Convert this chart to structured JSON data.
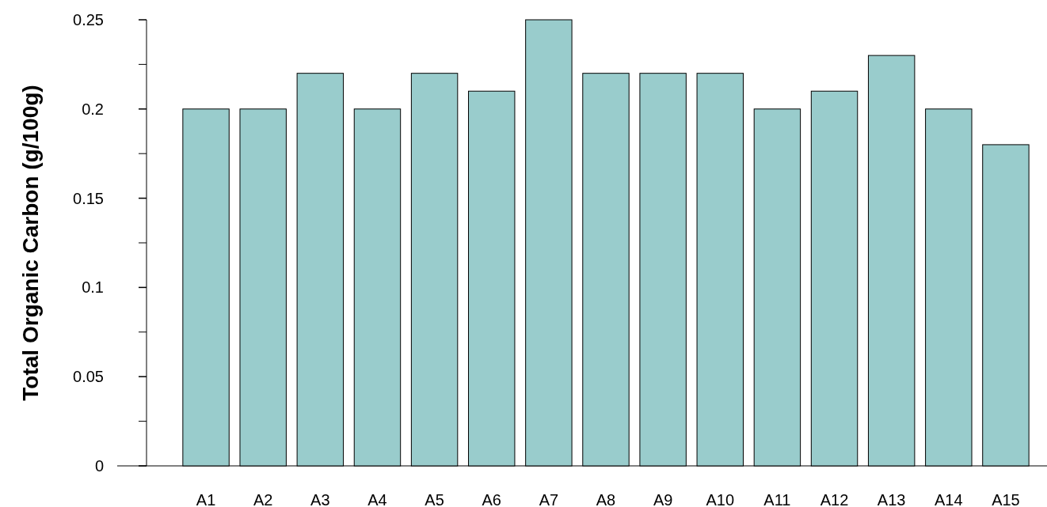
{
  "chart_data": {
    "type": "bar",
    "ylabel": "Total Organic Carbon (g/100g)",
    "categories": [
      "A1",
      "A2",
      "A3",
      "A4",
      "A5",
      "A6",
      "A7",
      "A8",
      "A9",
      "A10",
      "A11",
      "A12",
      "A13",
      "A14",
      "A15"
    ],
    "values": [
      0.2,
      0.2,
      0.22,
      0.2,
      0.22,
      0.21,
      0.25,
      0.22,
      0.22,
      0.22,
      0.2,
      0.21,
      0.23,
      0.2,
      0.18
    ],
    "color": "#99cccc",
    "ylim": [
      0,
      0.25
    ],
    "yticks": [
      0,
      0.05,
      0.1,
      0.15,
      0.2,
      0.25
    ],
    "grid": false
  }
}
